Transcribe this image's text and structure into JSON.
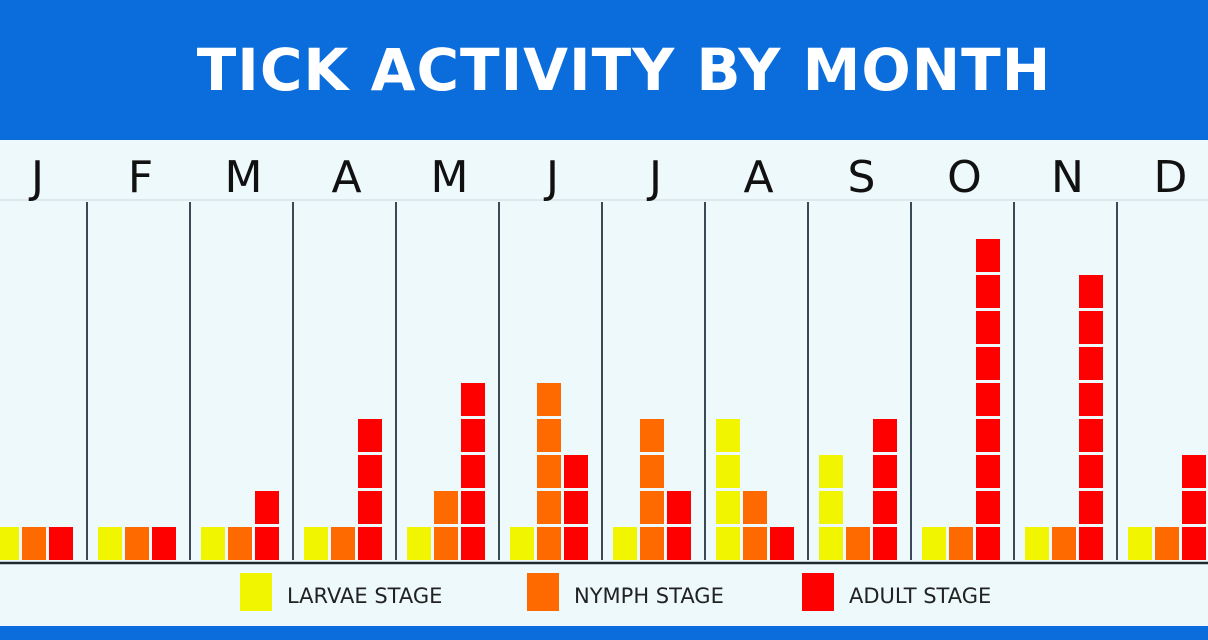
{
  "chart_data": {
    "type": "bar",
    "title": "TICK ACTIVITY BY MONTH",
    "categories": [
      "J",
      "F",
      "M",
      "A",
      "M",
      "J",
      "J",
      "A",
      "S",
      "O",
      "N",
      "D"
    ],
    "series": [
      {
        "name": "LARVAE STAGE",
        "color": "#f2f500",
        "values": [
          1,
          1,
          1,
          1,
          1,
          1,
          1,
          4,
          3,
          1,
          1,
          1
        ]
      },
      {
        "name": "NYMPH STAGE",
        "color": "#ff6a00",
        "values": [
          1,
          1,
          1,
          1,
          2,
          5,
          4,
          2,
          1,
          1,
          1,
          1
        ]
      },
      {
        "name": "ADULT STAGE",
        "color": "#ff0000",
        "values": [
          1,
          1,
          2,
          4,
          5,
          3,
          2,
          1,
          4,
          9,
          8,
          3
        ]
      }
    ],
    "bar_style": "stacked unit blocks per stage, grouped side by side",
    "legend_position": "bottom",
    "colors": {
      "header": "#0b6ddb",
      "background": "#eef9fc"
    }
  }
}
